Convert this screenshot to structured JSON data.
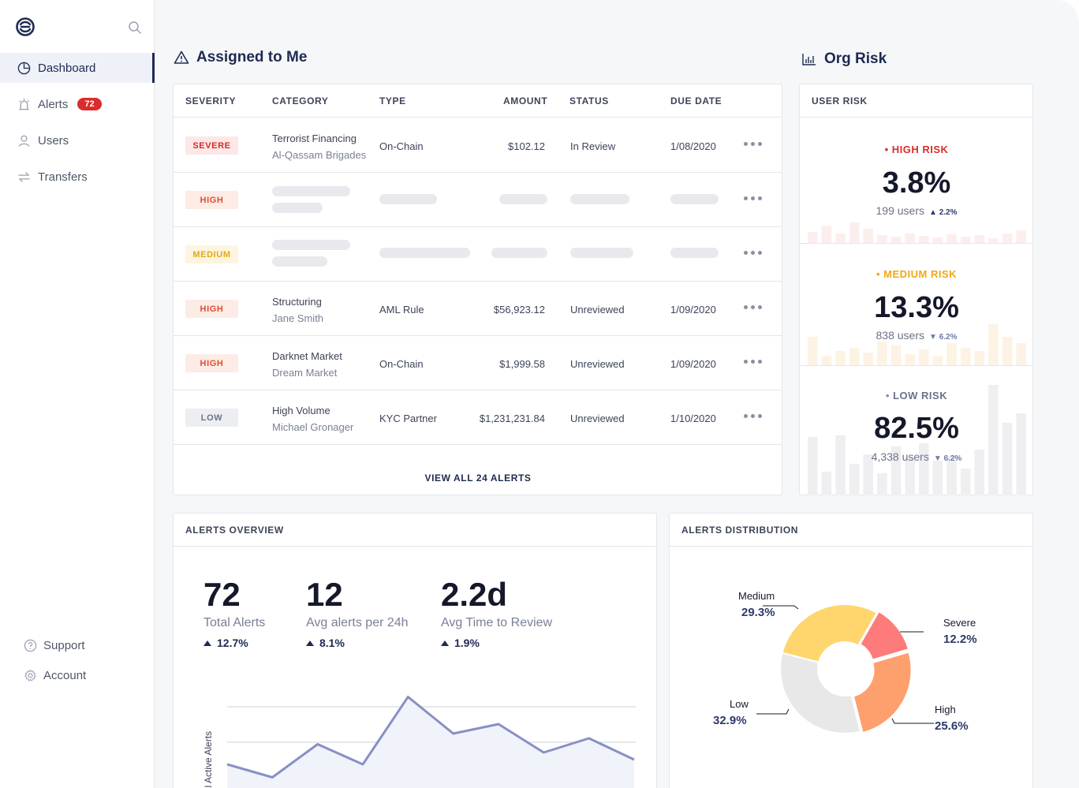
{
  "sidebar": {
    "items": [
      {
        "label": "Dashboard",
        "icon": "pie-chart-icon",
        "active": true
      },
      {
        "label": "Alerts",
        "icon": "siren-icon",
        "badge": "72"
      },
      {
        "label": "Users",
        "icon": "user-icon"
      },
      {
        "label": "Transfers",
        "icon": "transfer-arrows-icon"
      }
    ],
    "footer": [
      {
        "label": "Support",
        "icon": "help-circle-icon"
      },
      {
        "label": "Account",
        "icon": "gear-icon"
      }
    ]
  },
  "assigned": {
    "title": "Assigned to Me",
    "columns": [
      "SEVERITY",
      "CATEGORY",
      "TYPE",
      "AMOUNT",
      "STATUS",
      "DUE DATE"
    ],
    "rows": [
      {
        "severity": "SEVERE",
        "level": "severe",
        "category": "Terrorist Financing",
        "subject": "Al-Qassam Brigades",
        "type": "On-Chain",
        "amount": "$102.12",
        "status": "In Review",
        "due": "1/08/2020"
      },
      {
        "severity": "HIGH",
        "level": "high",
        "loading": true
      },
      {
        "severity": "MEDIUM",
        "level": "medium",
        "loading": true
      },
      {
        "severity": "HIGH",
        "level": "high",
        "category": "Structuring",
        "subject": "Jane Smith",
        "type": "AML Rule",
        "amount": "$56,923.12",
        "status": "Unreviewed",
        "due": "1/09/2020"
      },
      {
        "severity": "HIGH",
        "level": "high",
        "category": "Darknet Market",
        "subject": "Dream Market",
        "type": "On-Chain",
        "amount": "$1,999.58",
        "status": "Unreviewed",
        "due": "1/09/2020"
      },
      {
        "severity": "LOW",
        "level": "low",
        "category": "High Volume",
        "subject": "Michael Gronager",
        "type": "KYC Partner",
        "amount": "$1,231,231.84",
        "status": "Unreviewed",
        "due": "1/10/2020"
      }
    ],
    "view_all": "VIEW ALL 24 ALERTS"
  },
  "org_risk": {
    "title": "Org Risk",
    "header": "USER RISK",
    "levels": [
      {
        "label": "HIGH RISK",
        "value": "3.8%",
        "users": "199 users",
        "change": "2.2%",
        "direction": "up",
        "color": "#d92d2d",
        "bar_color": "#fdeeee",
        "bars": [
          14,
          22,
          12,
          26,
          18,
          10,
          8,
          12,
          9,
          7,
          11,
          8,
          10,
          6,
          12,
          16
        ]
      },
      {
        "label": "MEDIUM RISK",
        "value": "13.3%",
        "users": "838 users",
        "change": "6.2%",
        "direction": "down",
        "color": "#f0a818",
        "bar_color": "#fdf3e4",
        "bars": [
          36,
          12,
          18,
          22,
          16,
          30,
          26,
          14,
          20,
          12,
          28,
          22,
          18,
          52,
          36,
          28
        ]
      },
      {
        "label": "LOW RISK",
        "value": "82.5%",
        "users": "4,338 users",
        "change": "6.2%",
        "direction": "down",
        "color": "#8a90a3",
        "bar_color": "#efeff2",
        "bars": [
          74,
          30,
          76,
          40,
          52,
          28,
          62,
          48,
          66,
          44,
          50,
          34,
          58,
          140,
          92,
          104
        ]
      }
    ]
  },
  "overview": {
    "header": "ALERTS OVERVIEW",
    "stats": [
      {
        "value": "72",
        "label": "Total Alerts",
        "change": "12.7%"
      },
      {
        "value": "12",
        "label": "Avg alerts per 24h",
        "change": "8.1%"
      },
      {
        "value": "2.2d",
        "label": "Avg Time to Review",
        "change": "1.9%"
      }
    ],
    "chart_data": {
      "type": "area",
      "ylabel": "Total Active Alerts",
      "values": [
        38,
        27,
        55,
        38,
        95,
        64,
        72,
        48,
        60,
        42
      ]
    }
  },
  "distribution": {
    "header": "ALERTS DISTRIBUTION",
    "chart_data": {
      "type": "pie",
      "slices": [
        {
          "name": "Severe",
          "pct": "12.2%",
          "value": 12.2,
          "color": "#fe7b7b"
        },
        {
          "name": "High",
          "pct": "25.6%",
          "value": 25.6,
          "color": "#fe9f6e"
        },
        {
          "name": "Low",
          "pct": "32.9%",
          "value": 32.9,
          "color": "#e8e8e8"
        },
        {
          "name": "Medium",
          "pct": "29.3%",
          "value": 29.3,
          "color": "#ffd66e"
        }
      ]
    }
  }
}
